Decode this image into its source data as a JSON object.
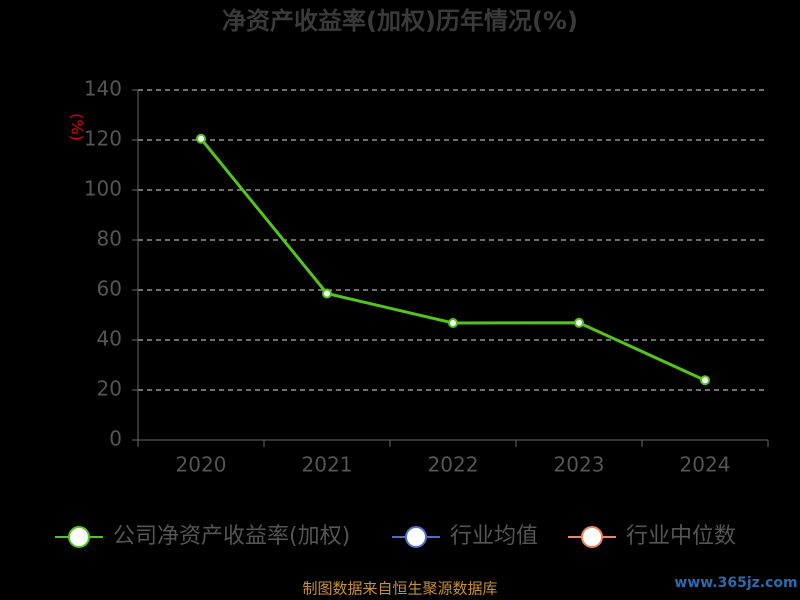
{
  "chart_data": {
    "type": "line",
    "title": "净资产收益率(加权)历年情况(%)",
    "y_label": "(%)",
    "categories": [
      "2020",
      "2021",
      "2022",
      "2023",
      "2024"
    ],
    "series": [
      {
        "name": "公司净资产收益率(加权)",
        "color": "#52c41a",
        "values": [
          120.5,
          58.6,
          46.8,
          46.9,
          23.9
        ]
      },
      {
        "name": "行业均值",
        "color": "#4a72c8",
        "values": [
          null,
          null,
          null,
          null,
          null
        ]
      },
      {
        "name": "行业中位数",
        "color": "#f0855a",
        "values": [
          null,
          null,
          null,
          null,
          null
        ]
      }
    ],
    "ylim": [
      0,
      140
    ],
    "yticks": [
      0,
      20,
      40,
      60,
      80,
      100,
      120,
      140
    ],
    "grid": true,
    "legend": "bottom",
    "source": "制图数据来自恒生聚源数据库",
    "watermark": "www.365jz.com"
  }
}
